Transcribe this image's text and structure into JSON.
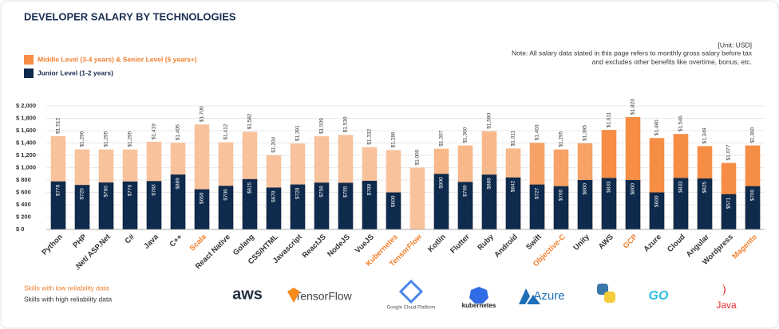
{
  "chart_data": {
    "type": "overlap-bar",
    "title": "DEVELOPER SALARY BY TECHNOLOGIES",
    "unit_note": "[Unit: USD]",
    "note_lines": [
      "Note: All salary data stated in this page refers to monthly gross salary before tax",
      "and excludes other benefits like overtime, bonus, etc."
    ],
    "categories": [
      "Python",
      "PHP",
      ".Net/ ASP.Net",
      "C#",
      "Java",
      "C++",
      "Scala",
      "React Native",
      "Golang",
      "CSS/HTML",
      "Javascript",
      "ReactJS",
      "NodeJS",
      "VueJS",
      "Kubernetes",
      "TensorFlow",
      "Kotlin",
      "Flutter",
      "Ruby",
      "Android",
      "Swift",
      "Objective-C",
      "Unity",
      "AWS",
      "GCP",
      "Azure",
      "Cloud",
      "Angular",
      "Wordpress",
      "Magento"
    ],
    "label_colors": [
      "#333333",
      "#333333",
      "#333333",
      "#333333",
      "#333333",
      "#333333",
      "#f07f2e",
      "#333333",
      "#333333",
      "#333333",
      "#333333",
      "#333333",
      "#333333",
      "#333333",
      "#f07f2e",
      "#f07f2e",
      "#333333",
      "#333333",
      "#333333",
      "#333333",
      "#333333",
      "#f07f2e",
      "#333333",
      "#333333",
      "#f07f2e",
      "#333333",
      "#333333",
      "#333333",
      "#333333",
      "#f07f2e"
    ],
    "series": [
      {
        "name": "Middle Level (3-4 years) & Senior Level (5 years+)",
        "colors": [
          "#f8c29c",
          "#f8c29c",
          "#f8c29c",
          "#f8c29c",
          "#f8c29c",
          "#f8c29c",
          "#f8c29c",
          "#f8c29c",
          "#f8c29c",
          "#f8c29c",
          "#f8c29c",
          "#f8c29c",
          "#f8c29c",
          "#f8c29c",
          "#f8c29c",
          "#f8c29c",
          "#f8b98a",
          "#f8b98a",
          "#f8b98a",
          "#f8b98a",
          "#f7a266",
          "#f7a266",
          "#f7a266",
          "#f68d45",
          "#f68d45",
          "#f68d45",
          "#f68d45",
          "#f68d45",
          "#f68d45",
          "#f68d45"
        ],
        "values": [
          1512,
          1296,
          1295,
          1295,
          1419,
          1405,
          1700,
          1412,
          1582,
          1204,
          1391,
          1509,
          1530,
          1332,
          1286,
          1000,
          1307,
          1360,
          1590,
          1311,
          1403,
          1295,
          1395,
          1611,
          1820,
          1480,
          1546,
          1349,
          1077,
          1360
        ],
        "value_labels": [
          "$1,512",
          "$1,296",
          "$1,295",
          "$1,295",
          "$1,419",
          "$1,405",
          "$1,700",
          "$1,412",
          "$1,582",
          "$1,204",
          "$1,391",
          "$1,509",
          "$1,530",
          "$1,332",
          "$1,286",
          "$1,000",
          "$1,307",
          "$1,360",
          "$1,590",
          "$1,311",
          "$1,403",
          "$1,295",
          "$1,395",
          "$1,611",
          "$1,820",
          "$1,480",
          "$1,546",
          "$1,349",
          "$1,077",
          "$1,360"
        ]
      },
      {
        "name": "Junior Level (1-2 years)",
        "color": "#0e2a4c",
        "values": [
          778,
          720,
          760,
          776,
          783,
          889,
          650,
          706,
          815,
          678,
          728,
          758,
          755,
          788,
          600,
          null,
          900,
          769,
          888,
          842,
          727,
          700,
          800,
          833,
          800,
          600,
          833,
          825,
          571,
          700
        ],
        "value_labels": [
          "$778",
          "$720",
          "$760",
          "$776",
          "$783",
          "$889",
          "$650",
          "$706",
          "$815",
          "$678",
          "$728",
          "$758",
          "$755",
          "$788",
          "$600",
          null,
          "$900",
          "$769",
          "$888",
          "$842",
          "$727",
          "$700",
          "$800",
          "$833",
          "$800",
          "$600",
          "$833",
          "$825",
          "$571",
          "$700"
        ]
      }
    ],
    "ylim": [
      0,
      2000
    ],
    "yticks": [
      {
        "value": 0,
        "label": "$ 0"
      },
      {
        "value": 200,
        "label": "$ 200"
      },
      {
        "value": 400,
        "label": "$ 400"
      },
      {
        "value": 600,
        "label": "$ 600"
      },
      {
        "value": 800,
        "label": "$ 800"
      },
      {
        "value": 1000,
        "label": "$ 1,000"
      },
      {
        "value": 1200,
        "label": "$ 1,200"
      },
      {
        "value": 1400,
        "label": "$ 1,400"
      },
      {
        "value": 1600,
        "label": "$ 1,600"
      },
      {
        "value": 1800,
        "label": "$ 1,800"
      },
      {
        "value": 2000,
        "label": "$ 2,000"
      }
    ],
    "grid": true,
    "footnotes": [
      {
        "text": "Skills with low reliability data",
        "color": "#f07f2e"
      },
      {
        "text": "Skills with high reliability data",
        "color": "#333333"
      }
    ],
    "logos": [
      "aws",
      "TensorFlow",
      "Google Cloud Platform",
      "kubernetes",
      "Azure",
      "GO",
      "Java"
    ]
  }
}
